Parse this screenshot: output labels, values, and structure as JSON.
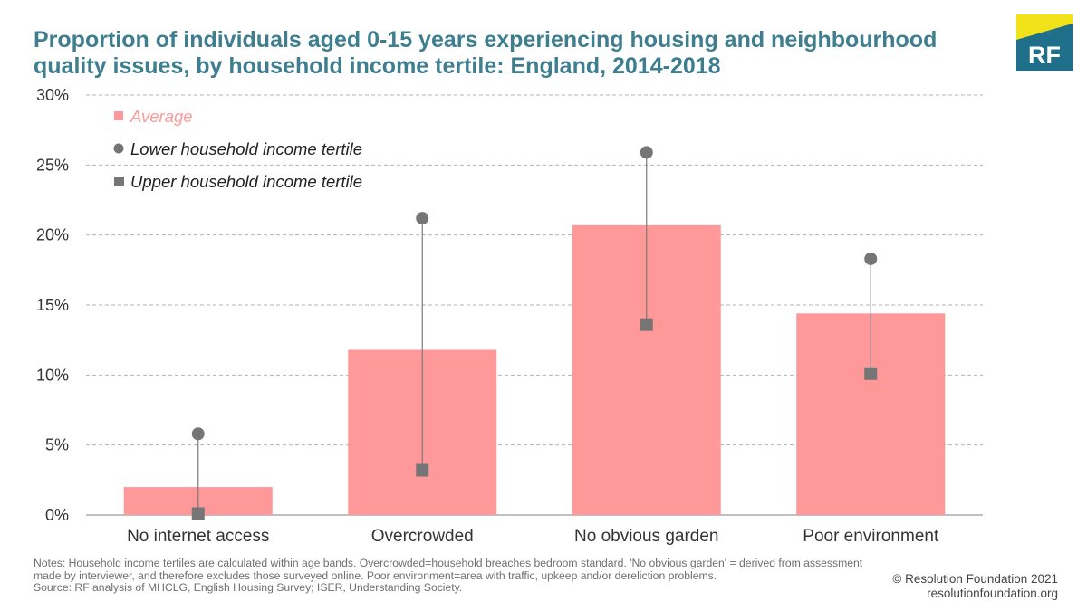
{
  "title": "Proportion of individuals aged 0-15 years experiencing housing and neighbourhood quality issues, by household income tertile: England, 2014-2018",
  "logo": {
    "text": "RF",
    "bg_color": "#1f6f8b",
    "accent_color": "#f2e21a"
  },
  "chart_data": {
    "type": "bar",
    "categories": [
      "No internet access",
      "Overcrowded",
      "No obvious garden",
      "Poor environment"
    ],
    "series": [
      {
        "name": "Average",
        "marker": "bar",
        "color": "#ff9999",
        "values": [
          2.0,
          11.8,
          20.7,
          14.4
        ]
      },
      {
        "name": "Lower household income tertile",
        "marker": "circle",
        "color": "#757575",
        "values": [
          5.8,
          21.2,
          25.9,
          18.3
        ]
      },
      {
        "name": "Upper household income tertile",
        "marker": "square",
        "color": "#757575",
        "values": [
          0.1,
          3.2,
          13.6,
          10.1
        ]
      }
    ],
    "ylim": [
      0,
      30
    ],
    "yticks": [
      0,
      5,
      10,
      15,
      20,
      25,
      30
    ],
    "ytick_labels": [
      "0%",
      "5%",
      "10%",
      "15%",
      "20%",
      "25%",
      "30%"
    ],
    "grid": true,
    "legend_position": "top-left"
  },
  "notes": [
    "Notes: Household income tertiles are calculated within age bands. Overcrowded=household breaches bedroom standard. 'No obvious garden' = derived from assessment",
    "made by interviewer, and therefore excludes those surveyed online. Poor environment=area with traffic, upkeep and/or dereliction problems.",
    "Source: RF analysis of MHCLG, English Housing Survey; ISER, Understanding Society."
  ],
  "credit": {
    "copyright": "© Resolution Foundation 2021",
    "website": "resolutionfoundation.org"
  }
}
